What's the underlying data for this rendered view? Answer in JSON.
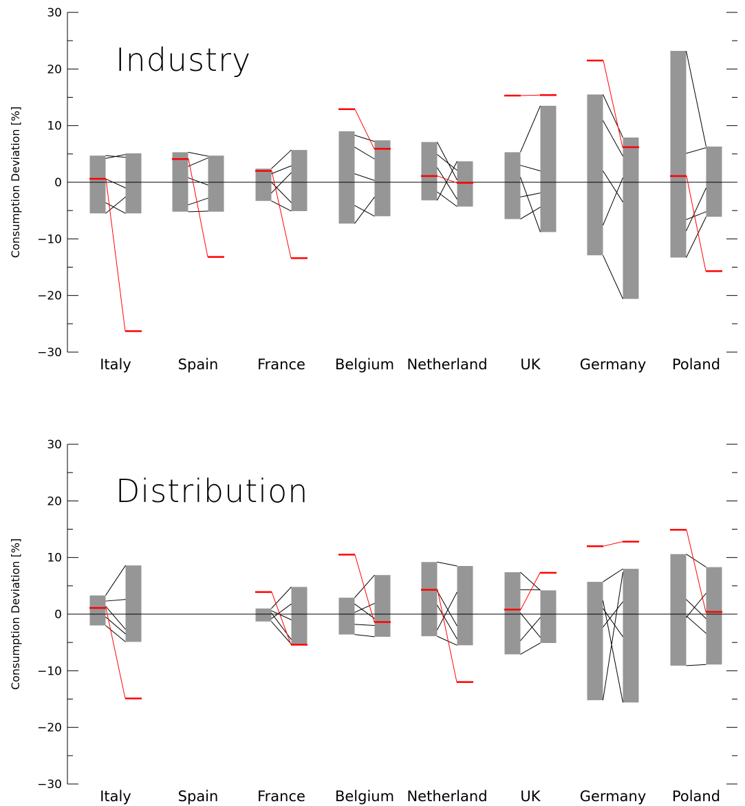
{
  "chart_data": [
    {
      "type": "bar",
      "title": "Industry",
      "ylabel": "Consumption Deviation [%]",
      "ylim": [
        -30,
        30
      ],
      "yticks": [
        "30",
        "20",
        "10",
        "0",
        "−10",
        "−20",
        "−30"
      ],
      "categories": [
        "Italy",
        "Spain",
        "France",
        "Belgium",
        "Netherland",
        "UK",
        "Germany",
        "Poland"
      ],
      "colors": {
        "bar": "#969696",
        "highlight": "#ff0000",
        "line": "#000000"
      },
      "groups": [
        {
          "left": {
            "min": -5.5,
            "max": 4.7,
            "red": 0.6
          },
          "right": {
            "min": -5.5,
            "max": 5.1,
            "red": -26.3
          },
          "links": [
            [
              4.2,
              4.9
            ],
            [
              -5.5,
              -2.6
            ],
            [
              -3.6,
              -5.5
            ],
            [
              0.6,
              -1.0
            ],
            [
              4.7,
              4.4
            ]
          ]
        },
        {
          "left": {
            "min": -5.2,
            "max": 5.3,
            "red": 4.1
          },
          "right": {
            "min": -5.2,
            "max": 4.7,
            "red": -13.2
          },
          "links": [
            [
              5.3,
              4.6
            ],
            [
              -5.2,
              -5.1
            ],
            [
              -4.0,
              -2.8
            ],
            [
              0.8,
              -0.5
            ],
            [
              2.8,
              4.3
            ]
          ]
        },
        {
          "left": {
            "min": -3.3,
            "max": 2.4,
            "red": 2.0
          },
          "right": {
            "min": -5.1,
            "max": 5.7,
            "red": -13.4
          },
          "links": [
            [
              2.4,
              5.7
            ],
            [
              -3.3,
              -5.1
            ],
            [
              1.5,
              2.9
            ],
            [
              0.0,
              -3.6
            ],
            [
              -1.9,
              1.7
            ]
          ]
        },
        {
          "left": {
            "min": -7.3,
            "max": 9.0,
            "red": 12.9
          },
          "right": {
            "min": -6.0,
            "max": 7.4,
            "red": 5.9
          },
          "links": [
            [
              8.3,
              7.2
            ],
            [
              -7.3,
              -2.6
            ],
            [
              -4.1,
              -6.0
            ],
            [
              6.2,
              4.1
            ],
            [
              1.5,
              0.3
            ]
          ]
        },
        {
          "left": {
            "min": -3.2,
            "max": 7.1,
            "red": 1.1
          },
          "right": {
            "min": -4.3,
            "max": 3.7,
            "red": -0.1
          },
          "links": [
            [
              7.1,
              0.4
            ],
            [
              -3.2,
              3.7
            ],
            [
              2.6,
              -3.0
            ],
            [
              -1.7,
              -4.3
            ],
            [
              4.9,
              2.1
            ]
          ]
        },
        {
          "left": {
            "min": -6.5,
            "max": 5.3,
            "red": 15.3
          },
          "right": {
            "min": -8.8,
            "max": 13.5,
            "red": 15.4
          },
          "links": [
            [
              5.3,
              13.5
            ],
            [
              -6.5,
              -4.4
            ],
            [
              3.0,
              2.0
            ],
            [
              -2.6,
              -1.9
            ],
            [
              0.9,
              -8.8
            ]
          ]
        },
        {
          "left": {
            "min": -12.9,
            "max": 15.5,
            "red": 21.5
          },
          "right": {
            "min": -20.6,
            "max": 7.9,
            "red": 6.2
          },
          "links": [
            [
              15.5,
              7.9
            ],
            [
              -12.9,
              -20.6
            ],
            [
              10.9,
              4.6
            ],
            [
              -7.6,
              0.8
            ],
            [
              2.0,
              -3.5
            ]
          ]
        },
        {
          "left": {
            "min": -13.3,
            "max": 23.2,
            "red": 1.1
          },
          "right": {
            "min": -6.1,
            "max": 6.3,
            "red": -15.7
          },
          "links": [
            [
              23.2,
              6.3
            ],
            [
              -13.3,
              -6.1
            ],
            [
              5.1,
              6.1
            ],
            [
              -6.6,
              -5.2
            ],
            [
              -8.6,
              -1.0
            ]
          ]
        }
      ]
    },
    {
      "type": "bar",
      "title": "Distribution",
      "ylabel": "Consumption Deviation [%]",
      "ylim": [
        -30,
        30
      ],
      "yticks": [
        "30",
        "20",
        "10",
        "0",
        "−10",
        "−20",
        "−30"
      ],
      "categories": [
        "Italy",
        "Spain",
        "France",
        "Belgium",
        "Netherland",
        "UK",
        "Germany",
        "Poland"
      ],
      "colors": {
        "bar": "#969696",
        "highlight": "#ff0000",
        "line": "#000000"
      },
      "groups": [
        {
          "left": {
            "min": -2.0,
            "max": 3.3,
            "red": 1.1
          },
          "right": {
            "min": -4.9,
            "max": 8.6,
            "red": -14.9
          },
          "links": [
            [
              3.3,
              8.6
            ],
            [
              -2.0,
              -4.9
            ],
            [
              2.3,
              2.6
            ],
            [
              -0.5,
              -3.5
            ],
            [
              1.4,
              -2.7
            ]
          ]
        },
        null,
        {
          "left": {
            "min": -1.3,
            "max": 1.0,
            "red": 3.9
          },
          "right": {
            "min": -5.3,
            "max": 4.8,
            "red": -5.4
          },
          "links": [
            [
              1.0,
              4.8
            ],
            [
              -1.3,
              -5.3
            ],
            [
              0.6,
              -1.0
            ],
            [
              -0.8,
              1.8
            ],
            [
              0.2,
              -4.5
            ]
          ]
        },
        {
          "left": {
            "min": -3.6,
            "max": 2.9,
            "red": 10.5
          },
          "right": {
            "min": -4.0,
            "max": 6.9,
            "red": -1.4
          },
          "links": [
            [
              2.9,
              6.9
            ],
            [
              -3.6,
              -4.0
            ],
            [
              1.8,
              -0.8
            ],
            [
              0.3,
              1.9
            ],
            [
              -1.8,
              -2.0
            ]
          ]
        },
        {
          "left": {
            "min": -3.9,
            "max": 9.2,
            "red": 4.3
          },
          "right": {
            "min": -5.5,
            "max": 8.5,
            "red": -12.0
          },
          "links": [
            [
              9.2,
              8.5
            ],
            [
              -3.9,
              -5.5
            ],
            [
              4.1,
              -2.1
            ],
            [
              -2.8,
              3.9
            ],
            [
              1.6,
              -4.4
            ]
          ]
        },
        {
          "left": {
            "min": -7.1,
            "max": 7.4,
            "red": 0.8
          },
          "right": {
            "min": -5.1,
            "max": 4.2,
            "red": 7.3
          },
          "links": [
            [
              7.4,
              4.2
            ],
            [
              -7.1,
              -5.1
            ],
            [
              4.3,
              4.3
            ],
            [
              -4.7,
              -0.6
            ],
            [
              0.2,
              -4.1
            ]
          ]
        },
        {
          "left": {
            "min": -15.2,
            "max": 5.7,
            "red": 12.0
          },
          "right": {
            "min": -15.6,
            "max": 8.0,
            "red": 12.8
          },
          "links": [
            [
              5.7,
              8.0
            ],
            [
              -15.2,
              7.4
            ],
            [
              2.4,
              -15.6
            ],
            [
              -2.3,
              2.2
            ],
            [
              1.0,
              -4.0
            ]
          ]
        },
        {
          "left": {
            "min": -9.1,
            "max": 10.6,
            "red": 14.9
          },
          "right": {
            "min": -8.9,
            "max": 8.3,
            "red": 0.4
          },
          "links": [
            [
              10.6,
              8.3
            ],
            [
              -9.1,
              -8.9
            ],
            [
              -0.6,
              3.7
            ],
            [
              -0.3,
              -3.4
            ],
            [
              2.6,
              -0.8
            ]
          ]
        }
      ]
    }
  ]
}
